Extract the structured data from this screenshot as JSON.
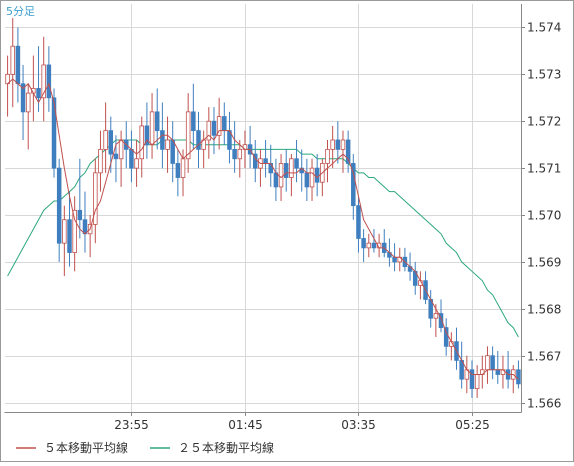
{
  "timeframe_label": "5分足",
  "legend": [
    {
      "label": "５本移動平均線",
      "color": "#c0504d"
    },
    {
      "label": "２５本移動平均線",
      "color": "#2ca87a"
    }
  ],
  "colors": {
    "up_candle_outline": "#c0504d",
    "down_candle": "#3f7fbf",
    "ma5": "#c0504d",
    "ma25": "#2ca87a",
    "grid": "#d8d8d8",
    "axis": "#888888",
    "label_text": "#333333",
    "timeframe_text": "#3f9fd0"
  },
  "chart_data": {
    "type": "candlestick",
    "title": "",
    "xlabel": "",
    "ylabel": "",
    "ylim": [
      1.5658,
      1.5745
    ],
    "y_ticks": [
      "1.574",
      "1.573",
      "1.572",
      "1.571",
      "1.570",
      "1.569",
      "1.568",
      "1.567",
      "1.566"
    ],
    "x_tick_labels": [
      "23:55",
      "01:45",
      "03:35",
      "05:25"
    ],
    "x_tick_candle_index": [
      24,
      46,
      68,
      90
    ],
    "candle_count": 100,
    "grid": true,
    "legend_position": "bottom",
    "candles_ohlc": [
      [
        1.5728,
        1.5734,
        1.5721,
        1.573
      ],
      [
        1.573,
        1.5742,
        1.5723,
        1.5736
      ],
      [
        1.5736,
        1.574,
        1.5724,
        1.5728
      ],
      [
        1.5728,
        1.5732,
        1.5716,
        1.5722
      ],
      [
        1.5722,
        1.5728,
        1.5714,
        1.5726
      ],
      [
        1.5726,
        1.5734,
        1.572,
        1.5727
      ],
      [
        1.5727,
        1.5736,
        1.5722,
        1.5725
      ],
      [
        1.5725,
        1.5738,
        1.572,
        1.5732
      ],
      [
        1.5732,
        1.5736,
        1.5722,
        1.5725
      ],
      [
        1.5725,
        1.5727,
        1.5708,
        1.571
      ],
      [
        1.571,
        1.5712,
        1.569,
        1.5694
      ],
      [
        1.5694,
        1.5702,
        1.5687,
        1.5699
      ],
      [
        1.5699,
        1.5705,
        1.5689,
        1.5692
      ],
      [
        1.5692,
        1.5704,
        1.5688,
        1.5701
      ],
      [
        1.5701,
        1.5712,
        1.5695,
        1.5699
      ],
      [
        1.5699,
        1.5705,
        1.5692,
        1.5696
      ],
      [
        1.5696,
        1.57,
        1.5691,
        1.5698
      ],
      [
        1.5698,
        1.5712,
        1.5694,
        1.5709
      ],
      [
        1.5709,
        1.5718,
        1.5705,
        1.5714
      ],
      [
        1.5714,
        1.5724,
        1.5709,
        1.5718
      ],
      [
        1.5718,
        1.5721,
        1.5709,
        1.5713
      ],
      [
        1.5713,
        1.5717,
        1.5707,
        1.5712
      ],
      [
        1.5712,
        1.5718,
        1.5706,
        1.5716
      ],
      [
        1.5716,
        1.572,
        1.571,
        1.5714
      ],
      [
        1.5714,
        1.5718,
        1.5707,
        1.571
      ],
      [
        1.571,
        1.5716,
        1.5706,
        1.5712
      ],
      [
        1.5712,
        1.5721,
        1.5708,
        1.5719
      ],
      [
        1.5719,
        1.5724,
        1.5712,
        1.5715
      ],
      [
        1.5715,
        1.5726,
        1.5712,
        1.5722
      ],
      [
        1.5722,
        1.5727,
        1.5714,
        1.5718
      ],
      [
        1.5718,
        1.5724,
        1.571,
        1.5714
      ],
      [
        1.5714,
        1.5721,
        1.5709,
        1.5716
      ],
      [
        1.5716,
        1.572,
        1.5707,
        1.5711
      ],
      [
        1.5711,
        1.5714,
        1.5704,
        1.5708
      ],
      [
        1.5708,
        1.5714,
        1.5704,
        1.5712
      ],
      [
        1.5712,
        1.5726,
        1.5709,
        1.5722
      ],
      [
        1.5722,
        1.5728,
        1.5714,
        1.5718
      ],
      [
        1.5718,
        1.5722,
        1.571,
        1.5714
      ],
      [
        1.5714,
        1.5718,
        1.571,
        1.5716
      ],
      [
        1.5716,
        1.5723,
        1.5712,
        1.572
      ],
      [
        1.572,
        1.5723,
        1.5713,
        1.5717
      ],
      [
        1.5717,
        1.5725,
        1.5714,
        1.5721
      ],
      [
        1.5721,
        1.5724,
        1.5715,
        1.5718
      ],
      [
        1.5718,
        1.5722,
        1.5711,
        1.5714
      ],
      [
        1.5714,
        1.572,
        1.5709,
        1.5712
      ],
      [
        1.5712,
        1.5716,
        1.5708,
        1.5714
      ],
      [
        1.5714,
        1.5718,
        1.571,
        1.5715
      ],
      [
        1.5715,
        1.5719,
        1.571,
        1.5713
      ],
      [
        1.5713,
        1.5716,
        1.5707,
        1.571
      ],
      [
        1.571,
        1.5714,
        1.5706,
        1.5712
      ],
      [
        1.5712,
        1.5716,
        1.5708,
        1.5711
      ],
      [
        1.5711,
        1.5715,
        1.5706,
        1.5709
      ],
      [
        1.5709,
        1.5712,
        1.5703,
        1.5706
      ],
      [
        1.5706,
        1.5713,
        1.5703,
        1.5711
      ],
      [
        1.5711,
        1.5714,
        1.5705,
        1.5708
      ],
      [
        1.5708,
        1.5713,
        1.5704,
        1.5712
      ],
      [
        1.5712,
        1.5716,
        1.5707,
        1.571
      ],
      [
        1.571,
        1.5714,
        1.5705,
        1.5709
      ],
      [
        1.5709,
        1.5712,
        1.5703,
        1.5706
      ],
      [
        1.5706,
        1.5712,
        1.5703,
        1.571
      ],
      [
        1.571,
        1.5713,
        1.5704,
        1.5707
      ],
      [
        1.5707,
        1.5712,
        1.5704,
        1.5711
      ],
      [
        1.5711,
        1.5716,
        1.5707,
        1.5714
      ],
      [
        1.5714,
        1.5719,
        1.571,
        1.5716
      ],
      [
        1.5716,
        1.572,
        1.5711,
        1.5714
      ],
      [
        1.5714,
        1.5718,
        1.5709,
        1.5716
      ],
      [
        1.5716,
        1.5718,
        1.5709,
        1.5711
      ],
      [
        1.5711,
        1.5713,
        1.5699,
        1.5702
      ],
      [
        1.5702,
        1.5704,
        1.5692,
        1.5695
      ],
      [
        1.5695,
        1.5697,
        1.569,
        1.5693
      ],
      [
        1.5693,
        1.5696,
        1.5691,
        1.5694
      ],
      [
        1.5694,
        1.5697,
        1.5692,
        1.5693
      ],
      [
        1.5693,
        1.5696,
        1.5691,
        1.5694
      ],
      [
        1.5694,
        1.5697,
        1.5691,
        1.5692
      ],
      [
        1.5692,
        1.5695,
        1.5689,
        1.5691
      ],
      [
        1.5691,
        1.5694,
        1.5688,
        1.569
      ],
      [
        1.569,
        1.5693,
        1.5688,
        1.5691
      ],
      [
        1.5691,
        1.5693,
        1.5688,
        1.5689
      ],
      [
        1.5689,
        1.5692,
        1.5686,
        1.5688
      ],
      [
        1.5688,
        1.569,
        1.5683,
        1.5685
      ],
      [
        1.5685,
        1.5688,
        1.5682,
        1.5686
      ],
      [
        1.5686,
        1.5688,
        1.5681,
        1.5682
      ],
      [
        1.5682,
        1.5684,
        1.5676,
        1.5678
      ],
      [
        1.5678,
        1.5681,
        1.5674,
        1.5679
      ],
      [
        1.5679,
        1.5682,
        1.5675,
        1.5676
      ],
      [
        1.5676,
        1.5678,
        1.567,
        1.5672
      ],
      [
        1.5672,
        1.5675,
        1.5669,
        1.5673
      ],
      [
        1.5673,
        1.5676,
        1.5667,
        1.5669
      ],
      [
        1.5669,
        1.5673,
        1.5663,
        1.5665
      ],
      [
        1.5665,
        1.567,
        1.5662,
        1.5667
      ],
      [
        1.5667,
        1.5669,
        1.5661,
        1.5663
      ],
      [
        1.5663,
        1.5668,
        1.5661,
        1.5666
      ],
      [
        1.5666,
        1.567,
        1.5663,
        1.5667
      ],
      [
        1.5667,
        1.5672,
        1.5664,
        1.567
      ],
      [
        1.567,
        1.5672,
        1.5665,
        1.5667
      ],
      [
        1.5667,
        1.5671,
        1.5664,
        1.5666
      ],
      [
        1.5666,
        1.567,
        1.5663,
        1.5667
      ],
      [
        1.5667,
        1.5671,
        1.5663,
        1.5665
      ],
      [
        1.5665,
        1.5668,
        1.5662,
        1.5667
      ],
      [
        1.5667,
        1.5669,
        1.5663,
        1.5664
      ]
    ],
    "series": [
      {
        "name": "５本移動平均線",
        "values": [
          1.5728,
          1.5729,
          1.5728,
          1.5727,
          1.5728,
          1.5726,
          1.5724,
          1.5726,
          1.5728,
          1.5724,
          1.5717,
          1.571,
          1.5704,
          1.5699,
          1.5697,
          1.5696,
          1.5697,
          1.5701,
          1.5703,
          1.5707,
          1.5711,
          1.5715,
          1.5716,
          1.5715,
          1.5714,
          1.5713,
          1.5714,
          1.5716,
          1.5715,
          1.5716,
          1.5717,
          1.5717,
          1.5716,
          1.5714,
          1.5712,
          1.5713,
          1.5714,
          1.5715,
          1.5716,
          1.5717,
          1.5716,
          1.5718,
          1.5718,
          1.5718,
          1.5716,
          1.5715,
          1.5714,
          1.5714,
          1.5712,
          1.5711,
          1.5711,
          1.5711,
          1.5709,
          1.5708,
          1.5709,
          1.5709,
          1.5709,
          1.571,
          1.5709,
          1.5709,
          1.5708,
          1.5709,
          1.571,
          1.5711,
          1.5712,
          1.5713,
          1.5712,
          1.5709,
          1.5704,
          1.5699,
          1.5697,
          1.5695,
          1.5693,
          1.5693,
          1.5692,
          1.5691,
          1.5691,
          1.569,
          1.5689,
          1.5688,
          1.5686,
          1.5684,
          1.5682,
          1.568,
          1.5678,
          1.5675,
          1.5673,
          1.5671,
          1.5669,
          1.5667,
          1.5666,
          1.5666,
          1.5666,
          1.5667,
          1.5667,
          1.5667,
          1.5667,
          1.5666,
          1.5666,
          1.5665
        ]
      },
      {
        "name": "２５本移動平均線",
        "values": [
          1.5687,
          1.5689,
          1.5691,
          1.5693,
          1.5695,
          1.5697,
          1.5699,
          1.5701,
          1.5702,
          1.5703,
          1.5703,
          1.5704,
          1.5705,
          1.5706,
          1.5708,
          1.5709,
          1.5711,
          1.5712,
          1.5713,
          1.5714,
          1.5715,
          1.5716,
          1.5716,
          1.5716,
          1.5716,
          1.5716,
          1.5715,
          1.5715,
          1.5715,
          1.5715,
          1.5716,
          1.5716,
          1.5716,
          1.5716,
          1.5716,
          1.5716,
          1.5715,
          1.5715,
          1.5715,
          1.5715,
          1.5715,
          1.5715,
          1.5715,
          1.5715,
          1.5715,
          1.5715,
          1.5714,
          1.5714,
          1.5714,
          1.5714,
          1.5714,
          1.5714,
          1.5714,
          1.5714,
          1.5714,
          1.5714,
          1.5714,
          1.5713,
          1.5713,
          1.5713,
          1.5712,
          1.5712,
          1.5712,
          1.5712,
          1.5712,
          1.5712,
          1.5711,
          1.571,
          1.5709,
          1.5709,
          1.5708,
          1.5708,
          1.5707,
          1.5706,
          1.5705,
          1.5705,
          1.5704,
          1.5703,
          1.5702,
          1.5701,
          1.57,
          1.5699,
          1.5698,
          1.5697,
          1.5696,
          1.5694,
          1.5693,
          1.5692,
          1.569,
          1.5689,
          1.5688,
          1.5687,
          1.5686,
          1.5684,
          1.5683,
          1.5681,
          1.5679,
          1.5677,
          1.5676,
          1.5674
        ]
      }
    ]
  }
}
